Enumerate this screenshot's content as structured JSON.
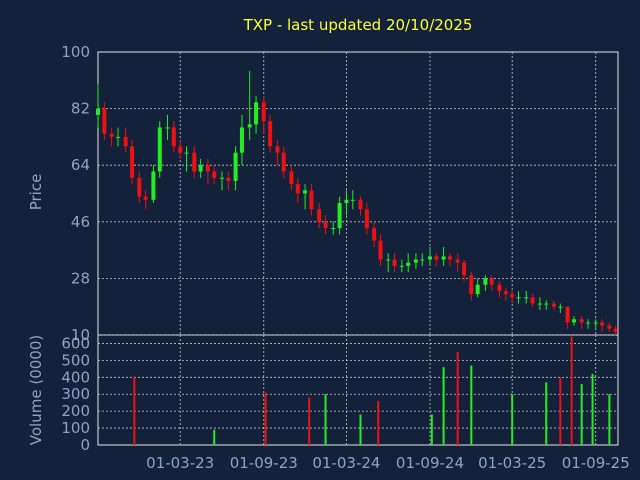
{
  "chart_data": [
    {
      "type": "candlestick",
      "title": "TXP - last updated 20/10/2025",
      "ylabel": "Price",
      "ylim": [
        10,
        100
      ],
      "yticks": [
        100,
        82,
        64,
        46,
        28,
        10
      ],
      "ytick_labels": [
        "100",
        "82",
        "64",
        "46",
        "28",
        "10"
      ],
      "x_tick_labels": [
        "01-03-23",
        "01-09-23",
        "01-03-24",
        "01-09-24",
        "01-03-25",
        "01-09-25"
      ],
      "x_range": [
        "2022-09-01",
        "2025-10-20"
      ],
      "up_color": "#22ee22",
      "down_color": "#ee1111",
      "grid": true,
      "series": [
        {
          "x": [
            "2022-09-01",
            "2022-09-15",
            "2022-10-01",
            "2022-10-15",
            "2022-11-01",
            "2022-11-15",
            "2022-12-01",
            "2022-12-15",
            "2023-01-01",
            "2023-01-15",
            "2023-02-01",
            "2023-02-15",
            "2023-03-01",
            "2023-03-15",
            "2023-04-01",
            "2023-04-15",
            "2023-05-01",
            "2023-05-15",
            "2023-06-01",
            "2023-06-15",
            "2023-07-01",
            "2023-07-15",
            "2023-08-01",
            "2023-08-15",
            "2023-09-01",
            "2023-09-15",
            "2023-10-01",
            "2023-10-15",
            "2023-11-01",
            "2023-11-15",
            "2023-12-01",
            "2023-12-15",
            "2024-01-01",
            "2024-01-15",
            "2024-02-01",
            "2024-02-15",
            "2024-03-01",
            "2024-03-15",
            "2024-04-01",
            "2024-04-15",
            "2024-05-01",
            "2024-05-15",
            "2024-06-01",
            "2024-06-15",
            "2024-07-01",
            "2024-07-15",
            "2024-08-01",
            "2024-08-15",
            "2024-09-01",
            "2024-09-15",
            "2024-10-01",
            "2024-10-15",
            "2024-11-01",
            "2024-11-15",
            "2024-12-01",
            "2024-12-15",
            "2025-01-01",
            "2025-01-15",
            "2025-02-01",
            "2025-02-15",
            "2025-03-01",
            "2025-03-15",
            "2025-04-01",
            "2025-04-15",
            "2025-05-01",
            "2025-05-15",
            "2025-06-01",
            "2025-06-15",
            "2025-07-01",
            "2025-07-15",
            "2025-08-01",
            "2025-08-15",
            "2025-09-01",
            "2025-09-15",
            "2025-10-01",
            "2025-10-15"
          ],
          "open": [
            80,
            82,
            74,
            73,
            73,
            70,
            60,
            54,
            53,
            62,
            76,
            76,
            70,
            68,
            68,
            62,
            64,
            62,
            60,
            60,
            59,
            68,
            76,
            77,
            84,
            78,
            70,
            68,
            62,
            58,
            55,
            56,
            50,
            46,
            44,
            44,
            52,
            53,
            53,
            50,
            44,
            40,
            34,
            34,
            32,
            32,
            33,
            34,
            34,
            35,
            34,
            35,
            34,
            33,
            29,
            23,
            26,
            28,
            26,
            24,
            23,
            22,
            22,
            22,
            20,
            20,
            20,
            19,
            19,
            14,
            15,
            14,
            14,
            14,
            13,
            12
          ],
          "close": [
            82,
            74,
            73,
            73,
            70,
            60,
            54,
            53,
            62,
            76,
            76,
            70,
            68,
            68,
            62,
            64,
            62,
            60,
            60,
            59,
            68,
            76,
            77,
            84,
            78,
            70,
            68,
            62,
            58,
            55,
            56,
            50,
            46,
            44,
            44,
            52,
            53,
            53,
            50,
            44,
            40,
            34,
            34,
            32,
            32,
            33,
            34,
            34,
            35,
            34,
            35,
            34,
            33,
            29,
            23,
            26,
            28,
            26,
            24,
            23,
            22,
            22,
            22,
            20,
            20,
            20,
            19,
            19,
            14,
            15,
            14,
            14,
            14,
            13,
            12,
            11
          ],
          "high": [
            90,
            84,
            76,
            76,
            76,
            72,
            62,
            56,
            64,
            78,
            80,
            78,
            72,
            70,
            70,
            66,
            66,
            64,
            62,
            62,
            70,
            80,
            94,
            86,
            86,
            80,
            72,
            70,
            64,
            60,
            58,
            58,
            52,
            48,
            46,
            54,
            56,
            56,
            54,
            52,
            46,
            42,
            36,
            36,
            34,
            36,
            36,
            36,
            38,
            36,
            38,
            36,
            36,
            34,
            30,
            28,
            29,
            29,
            27,
            25,
            24,
            24,
            24,
            23,
            22,
            21,
            21,
            20,
            19,
            16,
            16,
            15,
            15,
            15,
            14,
            13
          ],
          "low": [
            76,
            72,
            70,
            70,
            68,
            58,
            52,
            50,
            52,
            60,
            72,
            68,
            66,
            62,
            60,
            60,
            58,
            58,
            56,
            56,
            56,
            64,
            72,
            74,
            74,
            68,
            64,
            60,
            56,
            52,
            50,
            48,
            44,
            42,
            42,
            42,
            48,
            50,
            48,
            42,
            38,
            32,
            30,
            30,
            30,
            30,
            31,
            32,
            32,
            32,
            32,
            32,
            30,
            27,
            21,
            22,
            24,
            24,
            22,
            21,
            20,
            20,
            20,
            19,
            18,
            18,
            18,
            17,
            12,
            13,
            12,
            12,
            12,
            11,
            11,
            10
          ]
        }
      ]
    },
    {
      "type": "bar",
      "ylabel": "Volume (0000)",
      "ylim": [
        0,
        650
      ],
      "yticks": [
        0,
        100,
        200,
        300,
        400,
        500,
        600
      ],
      "ytick_labels": [
        "0",
        "100",
        "200",
        "300",
        "400",
        "500",
        "600"
      ],
      "series": [
        {
          "name": "",
          "x": [
            "2022-11-20",
            "2023-05-15",
            "2023-09-05",
            "2023-12-10",
            "2024-01-15",
            "2024-04-01",
            "2024-05-10",
            "2024-09-05",
            "2024-10-01",
            "2024-11-01",
            "2024-12-01",
            "2025-03-01",
            "2025-05-15",
            "2025-06-15",
            "2025-07-10",
            "2025-08-01",
            "2025-08-25",
            "2025-10-01"
          ],
          "values": [
            400,
            90,
            310,
            280,
            300,
            180,
            260,
            180,
            460,
            550,
            470,
            300,
            370,
            400,
            640,
            360,
            420,
            300
          ],
          "colors": [
            "#ee1111",
            "#22ee22",
            "#ee1111",
            "#ee1111",
            "#22ee22",
            "#22ee22",
            "#ee1111",
            "#22ee22",
            "#22ee22",
            "#ee1111",
            "#22ee22",
            "#22ee22",
            "#22ee22",
            "#ee1111",
            "#ee1111",
            "#22ee22",
            "#22ee22",
            "#22ee22"
          ]
        }
      ]
    }
  ]
}
